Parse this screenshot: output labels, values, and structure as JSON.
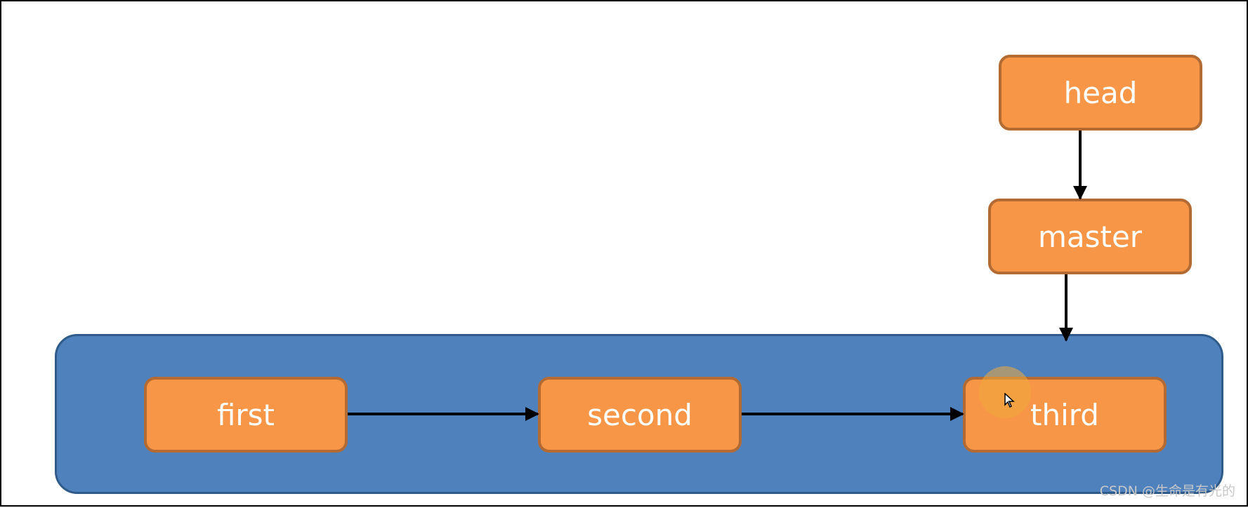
{
  "nodes": {
    "head": "head",
    "master": "master",
    "first": "first",
    "second": "second",
    "third": "third"
  },
  "watermark": "CSDN @生命是有光的",
  "colors": {
    "node_fill": "#f79646",
    "node_border": "#b46a33",
    "container_fill": "#4f81bd",
    "container_border": "#2f5b8a",
    "arrow": "#000000"
  },
  "edges": [
    {
      "from": "head",
      "to": "master"
    },
    {
      "from": "master",
      "to": "third"
    },
    {
      "from": "first",
      "to": "second"
    },
    {
      "from": "second",
      "to": "third"
    }
  ]
}
